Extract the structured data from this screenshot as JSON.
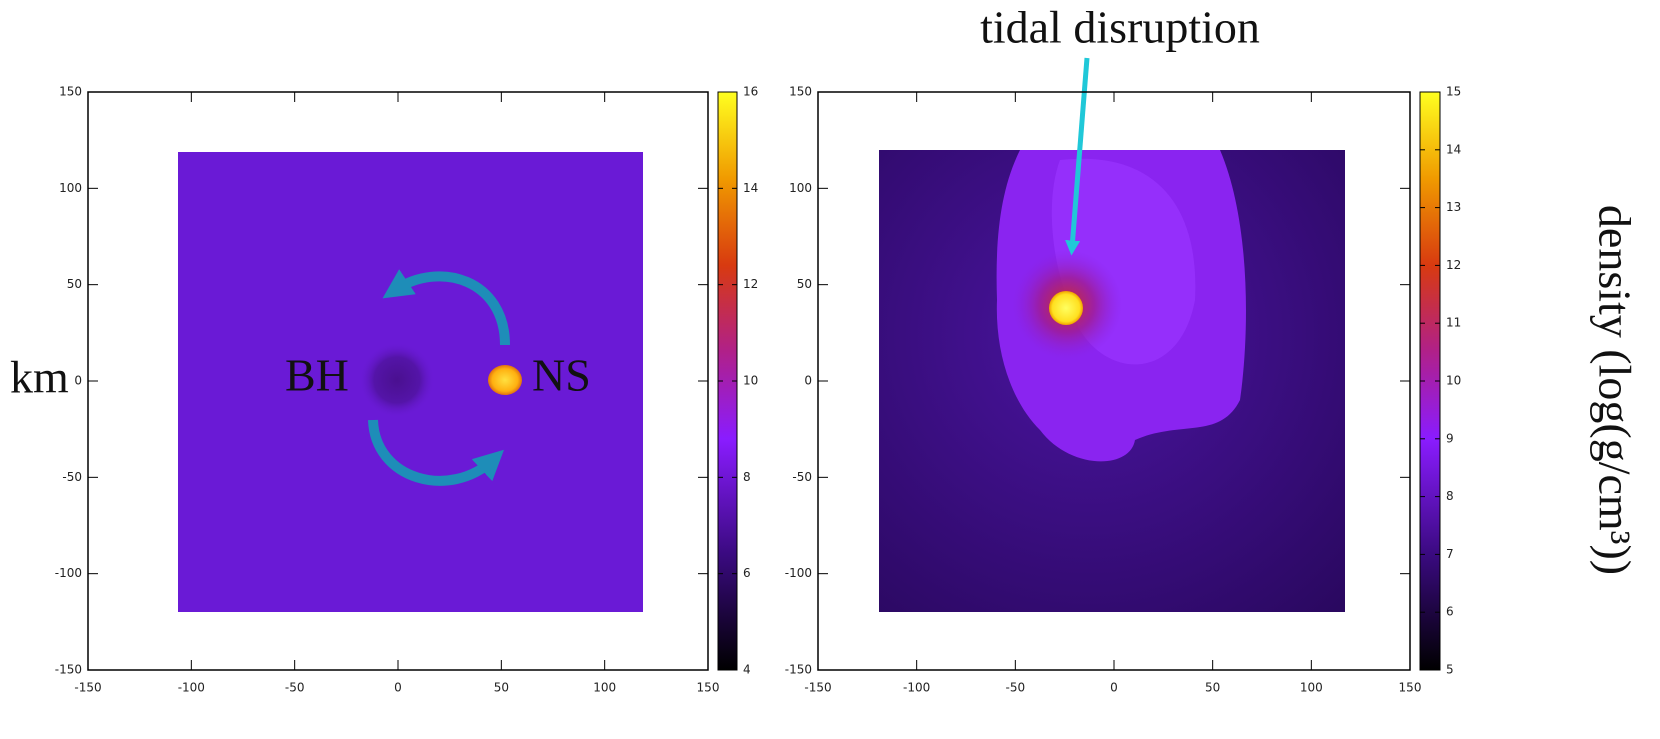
{
  "title": "tidal disruption",
  "y_label": "km",
  "colorbar_label": "density (log(g/cm³))",
  "chart_data": [
    {
      "type": "density-map",
      "labels": [
        "BH",
        "NS"
      ],
      "xlim": [
        -150,
        150
      ],
      "ylim": [
        -150,
        150
      ],
      "xticks": [
        -150,
        -100,
        -50,
        0,
        50,
        100,
        150
      ],
      "yticks": [
        -150,
        -100,
        -50,
        0,
        50,
        100,
        150
      ],
      "colorbar": {
        "lim": [
          4,
          16
        ],
        "ticks": [
          4,
          6,
          8,
          10,
          12,
          14,
          16
        ]
      }
    },
    {
      "type": "density-map",
      "xlim": [
        -150,
        150
      ],
      "ylim": [
        -150,
        150
      ],
      "xticks": [
        -150,
        -100,
        -50,
        0,
        50,
        100,
        150
      ],
      "yticks": [
        -150,
        -100,
        -50,
        0,
        50,
        100,
        150
      ],
      "colorbar": {
        "lim": [
          5,
          15
        ],
        "ticks": [
          5,
          6,
          7,
          8,
          9,
          10,
          11,
          12,
          13,
          14,
          15
        ]
      }
    }
  ]
}
